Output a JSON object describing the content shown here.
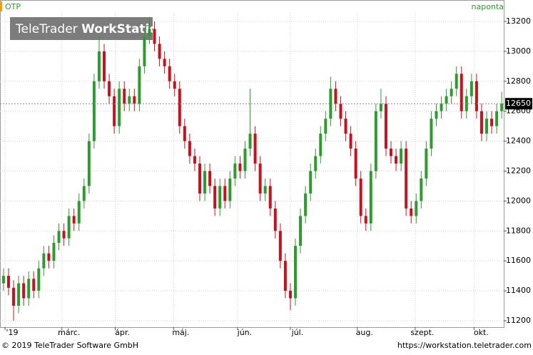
{
  "chart_data": {
    "type": "candlestick",
    "title": "OTP",
    "interval": "naponta",
    "watermark": [
      "TeleTrader",
      "WorkStation"
    ],
    "footer_left": "© 2019 TeleTrader Software GmbH",
    "footer_right": "https://workstation.teletrader.com",
    "up_color": "#2e9b2e",
    "down_color": "#c3131f",
    "grid": true,
    "ylim": [
      11157,
      13343
    ],
    "yticks": [
      11200,
      11400,
      11600,
      11800,
      12000,
      12200,
      12400,
      12600,
      12800,
      13000,
      13200
    ],
    "xlim": [
      -0.7,
      99.4
    ],
    "xticks": [
      {
        "value": 0.3,
        "label": "'19"
      },
      {
        "value": 11.6,
        "label": "márc."
      },
      {
        "value": 22.2,
        "label": "ápr."
      },
      {
        "value": 33.8,
        "label": "máj."
      },
      {
        "value": 46.5,
        "label": "jún."
      },
      {
        "value": 57,
        "label": "júl."
      },
      {
        "value": 70.3,
        "label": "aug."
      },
      {
        "value": 81.8,
        "label": "szept."
      },
      {
        "value": 93.5,
        "label": "okt."
      }
    ],
    "open": [
      11450,
      11500,
      11420,
      11300,
      11450,
      11350,
      11480,
      11400,
      11550,
      11650,
      11600,
      11720,
      11800,
      11750,
      11900,
      11850,
      12000,
      12100,
      12400,
      12800,
      13000,
      12800,
      12700,
      12500,
      12750,
      12650,
      12700,
      12650,
      12900,
      13100,
      13150,
      13050,
      12950,
      12900,
      12800,
      12750,
      12500,
      12400,
      12300,
      12250,
      12050,
      12200,
      12100,
      11950,
      12100,
      12000,
      12150,
      12250,
      12200,
      12350,
      12450,
      12250,
      12050,
      12100,
      11950,
      11800,
      11600,
      11400,
      11350,
      11700,
      11900,
      12050,
      12200,
      12300,
      12450,
      12550,
      12750,
      12650,
      12550,
      12450,
      12350,
      12150,
      11900,
      11850,
      12200,
      12600,
      12650,
      12350,
      12300,
      12250,
      12350,
      11950,
      11900,
      12000,
      12150,
      12350,
      12550,
      12600,
      12650,
      12700,
      12750,
      12850,
      12600,
      12700,
      12800,
      12600,
      12450,
      12550,
      12500,
      12600
    ],
    "high": [
      11550,
      11550,
      11470,
      11500,
      11500,
      11530,
      11530,
      11600,
      11700,
      11700,
      11770,
      11850,
      11850,
      11950,
      11950,
      12050,
      12150,
      12450,
      12850,
      13100,
      13050,
      12850,
      12750,
      12800,
      12800,
      12750,
      12750,
      12950,
      13150,
      13230,
      13200,
      13100,
      13000,
      12950,
      12850,
      12800,
      12550,
      12450,
      12350,
      12300,
      12250,
      12250,
      12150,
      12150,
      12150,
      12200,
      12300,
      12300,
      12400,
      12750,
      12500,
      12300,
      12150,
      12150,
      12000,
      11850,
      11650,
      11450,
      11750,
      11950,
      12100,
      12250,
      12350,
      12500,
      12600,
      12830,
      12800,
      12700,
      12600,
      12500,
      12400,
      12200,
      11950,
      12250,
      12650,
      12750,
      12700,
      12400,
      12350,
      12400,
      12400,
      12000,
      12050,
      12200,
      12400,
      12600,
      12650,
      12700,
      12750,
      12800,
      12900,
      12900,
      12750,
      12850,
      12850,
      12650,
      12600,
      12600,
      12650,
      12730
    ],
    "low": [
      11400,
      11370,
      11200,
      11250,
      11300,
      11300,
      11350,
      11350,
      11500,
      11550,
      11550,
      11670,
      11700,
      11700,
      11800,
      11800,
      11950,
      12050,
      12350,
      12750,
      12750,
      12650,
      12450,
      12450,
      12600,
      12600,
      12600,
      12600,
      12850,
      13050,
      13000,
      12900,
      12850,
      12750,
      12700,
      12450,
      12350,
      12250,
      12200,
      12000,
      12000,
      12050,
      11900,
      11900,
      11950,
      11950,
      12100,
      12150,
      12150,
      12300,
      12200,
      12000,
      12000,
      11900,
      11750,
      11550,
      11350,
      11270,
      11300,
      11650,
      11850,
      12000,
      12150,
      12250,
      12400,
      12500,
      12600,
      12500,
      12400,
      12300,
      12100,
      11850,
      11800,
      11800,
      12150,
      12550,
      12300,
      12250,
      12200,
      12200,
      11900,
      11850,
      11850,
      11950,
      12100,
      12300,
      12500,
      12550,
      12600,
      12650,
      12700,
      12550,
      12550,
      12650,
      12550,
      12400,
      12400,
      12450,
      12450,
      12550
    ],
    "close": [
      11500,
      11420,
      11300,
      11450,
      11350,
      11480,
      11400,
      11550,
      11650,
      11600,
      11720,
      11800,
      11750,
      11900,
      11850,
      12000,
      12100,
      12400,
      12800,
      13000,
      12800,
      12700,
      12500,
      12750,
      12650,
      12700,
      12650,
      12900,
      13100,
      13150,
      13050,
      12950,
      12900,
      12800,
      12750,
      12500,
      12400,
      12300,
      12250,
      12050,
      12200,
      12100,
      11950,
      12100,
      12000,
      12150,
      12250,
      12200,
      12350,
      12450,
      12250,
      12050,
      12100,
      11950,
      11800,
      11600,
      11400,
      11350,
      11700,
      11900,
      12050,
      12200,
      12300,
      12450,
      12550,
      12750,
      12650,
      12550,
      12450,
      12350,
      12150,
      11900,
      11850,
      12200,
      12600,
      12650,
      12350,
      12300,
      12250,
      12350,
      11950,
      11900,
      12000,
      12150,
      12350,
      12550,
      12600,
      12650,
      12700,
      12750,
      12850,
      12600,
      12700,
      12800,
      12600,
      12450,
      12550,
      12500,
      12600,
      12650
    ]
  }
}
